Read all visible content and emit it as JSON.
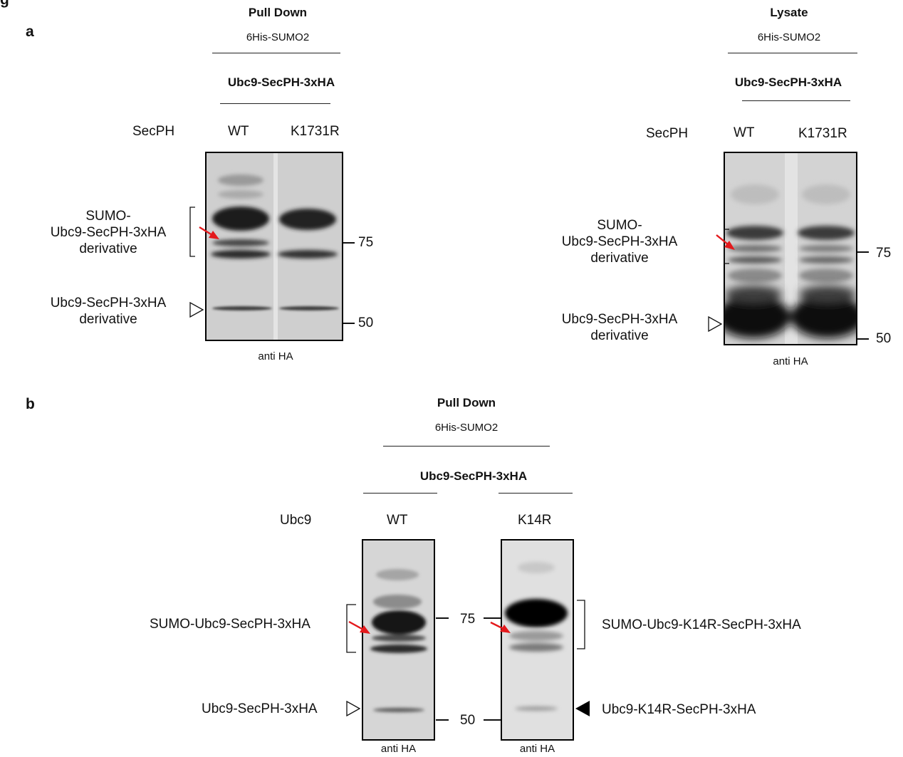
{
  "figure": {
    "corner_letter": "g",
    "panels": {
      "a": {
        "label": "a",
        "pulldown": {
          "title": "Pull Down",
          "bait": "6His-SUMO2",
          "construct": "Ubc9-SecPH-3xHA",
          "row_label": "SecPH",
          "lanes": [
            "WT",
            "K1731R"
          ],
          "band_upper": "SUMO-\nUbc9-SecPH-3xHA\nderivative",
          "band_lower": "Ubc9-SecPH-3xHA\nderivative",
          "markers": [
            "75",
            "50"
          ],
          "antibody": "anti HA"
        },
        "lysate": {
          "title": "Lysate",
          "bait": "6His-SUMO2",
          "construct": "Ubc9-SecPH-3xHA",
          "row_label": "SecPH",
          "lanes": [
            "WT",
            "K1731R"
          ],
          "band_upper": "SUMO-\nUbc9-SecPH-3xHA\nderivative",
          "band_lower": "Ubc9-SecPH-3xHA\nderivative",
          "markers": [
            "75",
            "50"
          ],
          "antibody": "anti HA"
        }
      },
      "b": {
        "label": "b",
        "title": "Pull Down",
        "bait": "6His-SUMO2",
        "construct": "Ubc9-SecPH-3xHA",
        "row_label": "Ubc9",
        "lanes": [
          "WT",
          "K14R"
        ],
        "band_upper_left": "SUMO-Ubc9-SecPH-3xHA",
        "band_lower_left": "Ubc9-SecPH-3xHA",
        "band_upper_right": "SUMO-Ubc9-K14R-SecPH-3xHA",
        "band_lower_right": "Ubc9-K14R-SecPH-3xHA",
        "markers": [
          "75",
          "50"
        ],
        "antibody_left": "anti HA",
        "antibody_right": "anti HA"
      }
    }
  }
}
